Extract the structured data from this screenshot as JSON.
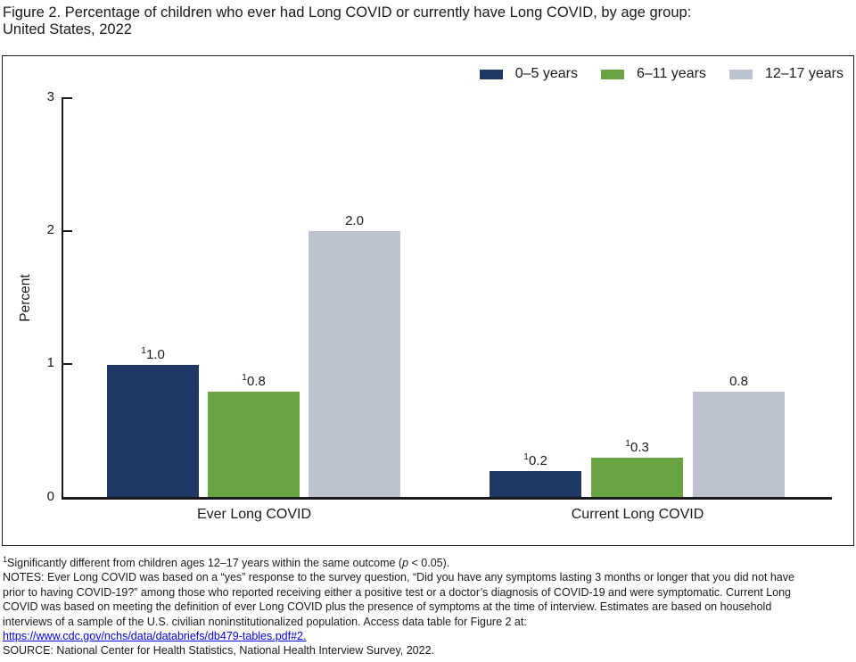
{
  "title": {
    "line1": "Figure 2. Percentage of children who ever had Long COVID or currently have Long COVID, by age group:",
    "line2": "United States, 2022"
  },
  "chart_data": {
    "type": "bar",
    "categories": [
      "Ever Long COVID",
      "Current Long COVID"
    ],
    "series": [
      {
        "name": "0–5 years",
        "color": "#1f3864",
        "values": [
          1.0,
          0.2
        ],
        "value_labels": [
          "1.0",
          "0.2"
        ],
        "label_sups": [
          "1",
          "1"
        ]
      },
      {
        "name": "6–11 years",
        "color": "#6aa342",
        "values": [
          0.8,
          0.3
        ],
        "value_labels": [
          "0.8",
          "0.3"
        ],
        "label_sups": [
          "1",
          "1"
        ]
      },
      {
        "name": "12–17 years",
        "color": "#bcc2cf",
        "values": [
          2.0,
          0.8
        ],
        "value_labels": [
          "2.0",
          "0.8"
        ],
        "label_sups": [
          "",
          ""
        ]
      }
    ],
    "xlabel": "",
    "ylabel": "Percent",
    "ylim": [
      0,
      3
    ],
    "yticks": [
      "3",
      "2",
      "1",
      "0"
    ],
    "legend_position": "top-right",
    "grid": false
  },
  "footnote": {
    "sig_sup": "1",
    "sig_pre": "Significantly different from children ages 12–17 years within the same outcome (",
    "sig_p": "p",
    "sig_post": " < 0.05).",
    "notes_lines": [
      "NOTES: Ever Long COVID was based on a “yes” response to the survey question, “Did you have any symptoms lasting 3 months or longer that you did not have",
      "prior to having COVID-19?” among those who reported receiving either a positive test or a doctor’s diagnosis of COVID-19 and were symptomatic. Current Long",
      "COVID was based on meeting the definition of ever Long COVID plus the presence of symptoms at the time of interview. Estimates are based on household",
      "interviews of a sample of the U.S. civilian noninstitutionalized population. Access data table for Figure 2 at:"
    ],
    "link": "https://www.cdc.gov/nchs/data/databriefs/db479-tables.pdf#2.",
    "source": "SOURCE: National Center for Health Statistics, National Health Interview Survey, 2022."
  }
}
